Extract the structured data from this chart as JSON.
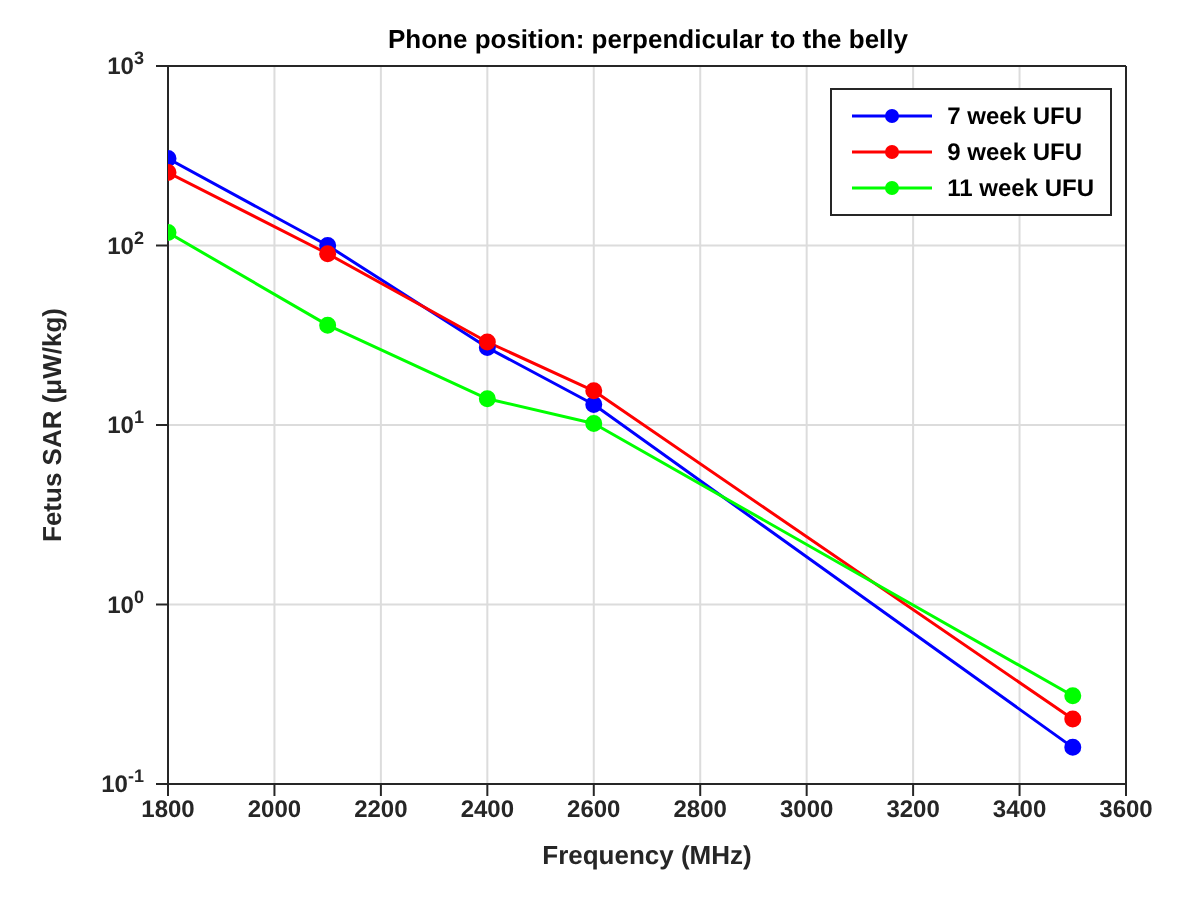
{
  "chart_data": {
    "type": "line",
    "title": "Phone position: perpendicular to the belly",
    "xlabel": "Frequency (MHz)",
    "ylabel": "Fetus SAR (μW/kg)",
    "x": [
      1800,
      2100,
      2400,
      2600,
      3500
    ],
    "series": [
      {
        "name": "7 week UFU",
        "color": "#0000ff",
        "values": [
          305,
          100,
          27,
          13,
          0.16
        ]
      },
      {
        "name": "9 week UFU",
        "color": "#ff0000",
        "values": [
          255,
          90,
          29,
          15.5,
          0.23
        ]
      },
      {
        "name": "11 week UFU",
        "color": "#00ff00",
        "values": [
          118,
          36,
          14,
          10.2,
          0.31
        ]
      }
    ],
    "xlim": [
      1800,
      3600
    ],
    "xticks": [
      1800,
      2000,
      2200,
      2400,
      2600,
      2800,
      3000,
      3200,
      3400,
      3600
    ],
    "ylim": [
      0.1,
      1000
    ],
    "yticks": [
      {
        "value": 0.1,
        "label": "10$^{-1}$"
      },
      {
        "value": 1,
        "label": "10$^{0}$"
      },
      {
        "value": 10,
        "label": "10$^{1}$"
      },
      {
        "value": 100,
        "label": "10$^{2}$"
      },
      {
        "value": 1000,
        "label": "10$^{3}$"
      }
    ],
    "log": "y",
    "grid": true,
    "legend": "top right",
    "marker": "circle",
    "line_style": "solid"
  }
}
